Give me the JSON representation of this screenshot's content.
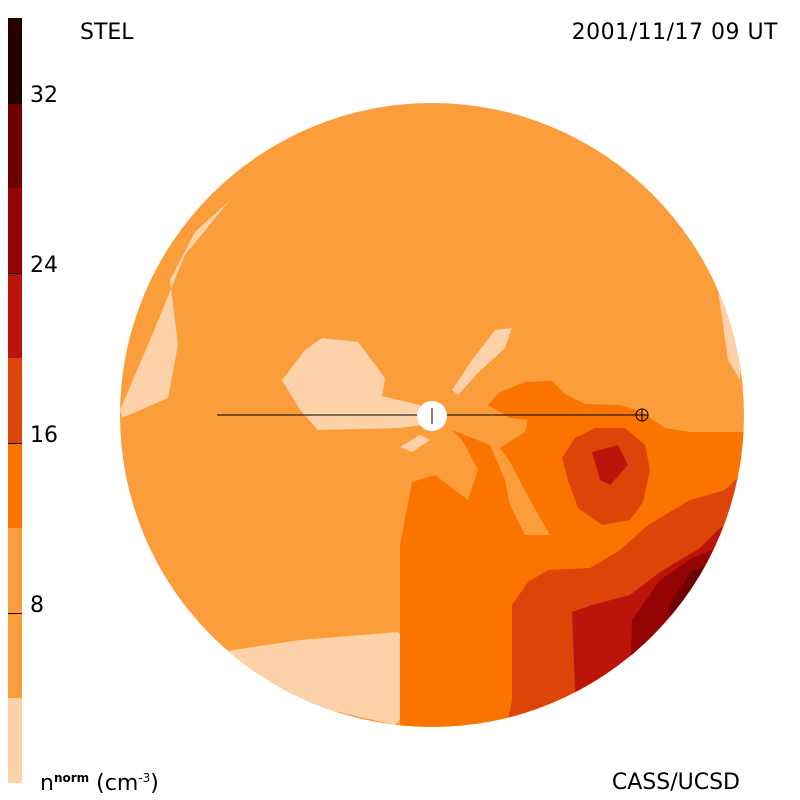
{
  "header": {
    "observatory": "STEL",
    "timestamp": "2001/11/17 09 UT"
  },
  "footer": {
    "credit": "CASS/UCSD"
  },
  "colorbar": {
    "unit_base": "n",
    "unit_sup": "norm",
    "unit_open": "(cm",
    "unit_exp": "-3",
    "unit_close": ")",
    "tick_labels": [
      "32",
      "24",
      "16",
      "8"
    ],
    "tick_values": [
      32,
      24,
      16,
      8
    ],
    "range": [
      0,
      36
    ],
    "levels": [
      {
        "from": 0,
        "to": 4,
        "color": "#fdd2a8"
      },
      {
        "from": 4,
        "to": 12,
        "color": "#fb9d3a"
      },
      {
        "from": 12,
        "to": 16,
        "color": "#fb7400"
      },
      {
        "from": 16,
        "to": 20,
        "color": "#dd4407"
      },
      {
        "from": 20,
        "to": 24,
        "color": "#bb150b"
      },
      {
        "from": 24,
        "to": 28,
        "color": "#950404"
      },
      {
        "from": 28,
        "to": 32,
        "color": "#6e0000"
      },
      {
        "from": 32,
        "to": 36,
        "color": "#260000"
      }
    ]
  },
  "map": {
    "background_color": "#fb9d3a",
    "sun_color": "#ffffff",
    "line_color": "#000000"
  }
}
